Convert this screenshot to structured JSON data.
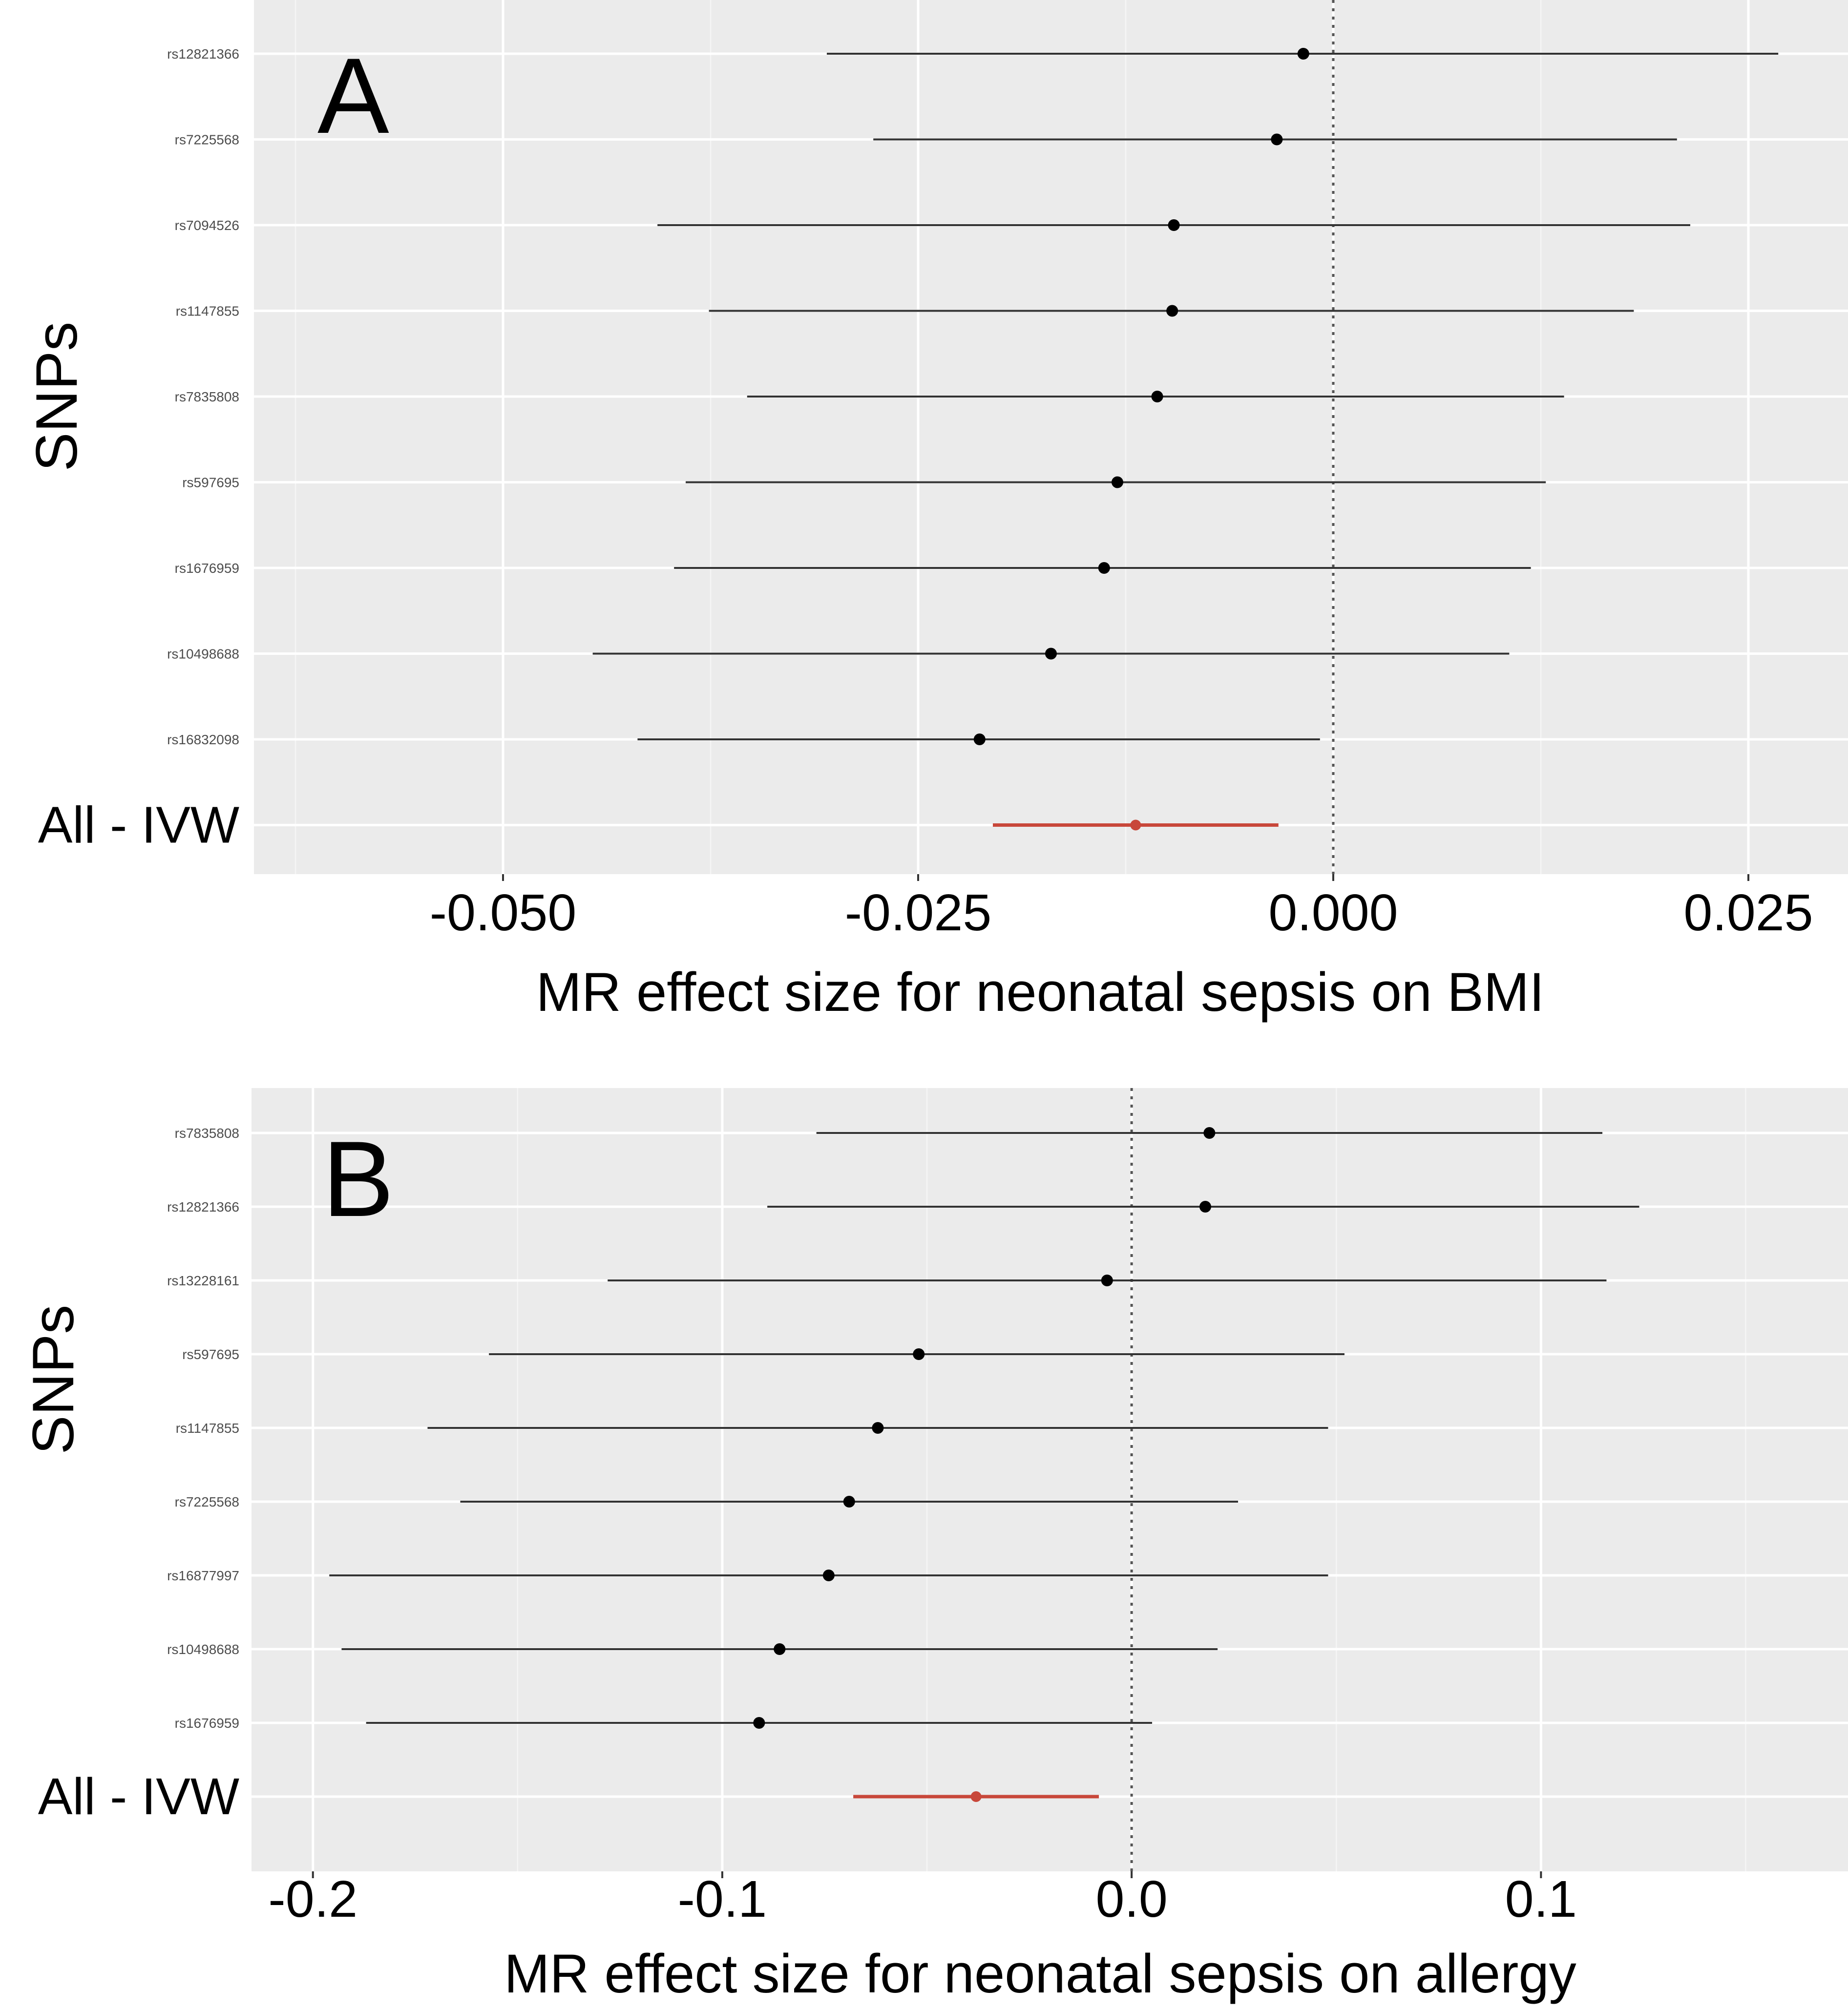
{
  "chart_data": [
    {
      "type": "forest",
      "panel_label": "A",
      "ylabel": "SNPs",
      "xlabel": "MR effect size for neonatal sepsis on BMI",
      "xticks": [
        "-0.050",
        "-0.025",
        "0.000",
        "0.025"
      ],
      "xtick_values": [
        -0.05,
        -0.025,
        0.0,
        0.025
      ],
      "xlim": [
        -0.065,
        0.031
      ],
      "reference_line": 0,
      "rows": [
        {
          "label": "rs12821366",
          "estimate": -0.0018,
          "lower": -0.0305,
          "upper": 0.0268
        },
        {
          "label": "rs7225568",
          "estimate": -0.0034,
          "lower": -0.0277,
          "upper": 0.0207
        },
        {
          "label": "rs7094526",
          "estimate": -0.0096,
          "lower": -0.0407,
          "upper": 0.0215
        },
        {
          "label": "rs1147855",
          "estimate": -0.0097,
          "lower": -0.0376,
          "upper": 0.0181
        },
        {
          "label": "rs7835808",
          "estimate": -0.0106,
          "lower": -0.0353,
          "upper": 0.0139
        },
        {
          "label": "rs597695",
          "estimate": -0.013,
          "lower": -0.039,
          "upper": 0.0128
        },
        {
          "label": "rs1676959",
          "estimate": -0.0138,
          "lower": -0.0397,
          "upper": 0.0119
        },
        {
          "label": "rs10498688",
          "estimate": -0.017,
          "lower": -0.0446,
          "upper": 0.0106
        },
        {
          "label": "rs16832098",
          "estimate": -0.0213,
          "lower": -0.0419,
          "upper": -0.0008
        }
      ],
      "summary": {
        "label": "All - IVW",
        "estimate": -0.0119,
        "lower": -0.0205,
        "upper": -0.0033,
        "color": "#c8473a"
      }
    },
    {
      "type": "forest",
      "panel_label": "B",
      "ylabel": "SNPs",
      "xlabel": "MR effect size for neonatal sepsis on allergy",
      "xticks": [
        "-0.2",
        "-0.1",
        "0.0",
        "0.1"
      ],
      "xtick_values": [
        -0.2,
        -0.1,
        0.0,
        0.1
      ],
      "xlim": [
        -0.215,
        0.175
      ],
      "reference_line": 0,
      "rows": [
        {
          "label": "rs7835808",
          "estimate": 0.019,
          "lower": -0.077,
          "upper": 0.115
        },
        {
          "label": "rs12821366",
          "estimate": 0.018,
          "lower": -0.089,
          "upper": 0.124
        },
        {
          "label": "rs13228161",
          "estimate": -0.006,
          "lower": -0.128,
          "upper": 0.116
        },
        {
          "label": "rs597695",
          "estimate": -0.052,
          "lower": -0.157,
          "upper": 0.052
        },
        {
          "label": "rs1147855",
          "estimate": -0.062,
          "lower": -0.172,
          "upper": 0.048
        },
        {
          "label": "rs7225568",
          "estimate": -0.069,
          "lower": -0.164,
          "upper": 0.026
        },
        {
          "label": "rs16877997",
          "estimate": -0.074,
          "lower": -0.196,
          "upper": 0.048
        },
        {
          "label": "rs10498688",
          "estimate": -0.086,
          "lower": -0.193,
          "upper": 0.021
        },
        {
          "label": "rs1676959",
          "estimate": -0.091,
          "lower": -0.187,
          "upper": 0.005
        }
      ],
      "summary": {
        "label": "All - IVW",
        "estimate": -0.038,
        "lower": -0.068,
        "upper": -0.008,
        "color": "#c8473a"
      }
    }
  ]
}
